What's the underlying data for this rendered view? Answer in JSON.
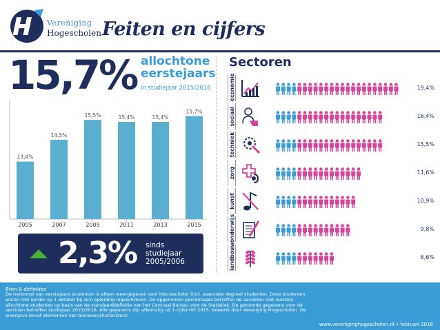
{
  "header": {
    "logo_line1": "Vereniging",
    "logo_line2": "Hogescholen",
    "title": "Feiten en cijfers"
  },
  "colors": {
    "navy": "#1e2d5c",
    "blue": "#3a9bd5",
    "bar": "#5aafd0",
    "pink": "#d6449a",
    "green": "#4cae3a"
  },
  "headline": {
    "value": "15,7%",
    "label_line1": "allochtone",
    "label_line2": "eerstejaars",
    "sub": "in studiejaar 2015/2016"
  },
  "chart_data": {
    "type": "bar",
    "categories": [
      "2005",
      "2007",
      "2009",
      "2011",
      "2013",
      "2015"
    ],
    "values": [
      13.4,
      14.5,
      15.5,
      15.4,
      15.4,
      15.7
    ],
    "labels": [
      "13,4%",
      "14,5%",
      "15,5%",
      "15,4%",
      "15,4%",
      "15,7%"
    ],
    "ylim": [
      10.5,
      16.2
    ]
  },
  "change": {
    "value": "2,3%",
    "line1": "sinds",
    "line2": "studiejaar",
    "line3": "2005/2006"
  },
  "sectors_title": "Sectoren",
  "sectors": [
    {
      "name": "economie",
      "label": "19,4%",
      "value": 19.4,
      "icon": "chart-icon"
    },
    {
      "name": "sociaal",
      "label": "16,4%",
      "value": 16.4,
      "icon": "people-hand-icon"
    },
    {
      "name": "techniek",
      "label": "15,5%",
      "value": 15.5,
      "icon": "gear-tools-icon"
    },
    {
      "name": "zorg",
      "label": "11,6%",
      "value": 11.6,
      "icon": "medical-icon"
    },
    {
      "name": "kunst",
      "label": "10,9%",
      "value": 10.9,
      "icon": "music-note-icon"
    },
    {
      "name": "onderwijs",
      "label": "9,8%",
      "value": 9.8,
      "icon": "document-pencil-icon"
    },
    {
      "name": "landbouw",
      "label": "6,6%",
      "value": 6.6,
      "icon": "wheat-icon"
    }
  ],
  "footer": {
    "heading": "Bron & definities",
    "text": "De herkomst van eerstejaars studenten is alleen weergegeven voor hbo-bachelor (incl. associate degree) studenten. Deze studenten waren niet eerder op 1 oktober bij zo'n opleiding ingeschreven. De opgenomen percentages betreffen de aandelen niet-westers allochtone studenten op basis van de standaarddefinitie van het Centraal Bureau voor de Statistiek. De getoonde gegevens voor de sectoren betreffen studiejaar 2015/2016. Alle gegevens zijn afkomstig uit 1-cijfer-HO 2015, bewerkt door Vereniging Hogescholen. De weergave bevat elementen van bioraven/shutterstock.",
    "url": "www.vereniginghogescholen.nl • februari 2016"
  }
}
